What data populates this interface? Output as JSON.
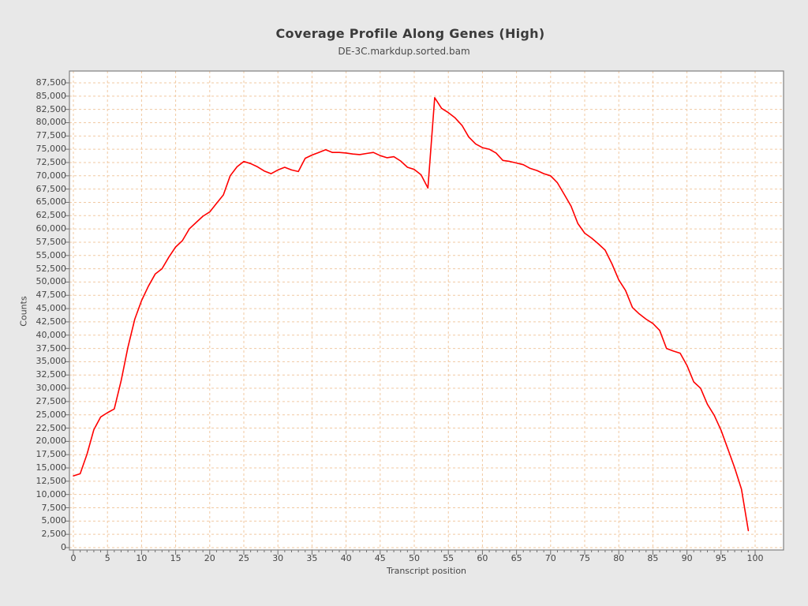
{
  "page": {
    "background": "#e8e8e8"
  },
  "chart": {
    "title": "Coverage Profile Along Genes (High)",
    "subtitle": "DE-3C.markdup.sorted.bam",
    "x_axis_label": "Transcript position",
    "y_axis_label": "Counts"
  },
  "chart_data": {
    "type": "line",
    "title": "Coverage Profile Along Genes (High)",
    "subtitle": "DE-3C.markdup.sorted.bam",
    "xlabel": "Transcript position",
    "ylabel": "Counts",
    "series_name": "DE-3C.markdup.sorted.bam",
    "legend": "none",
    "grid": true,
    "line_color": "#ff0000",
    "grid_color": "#f1c9a2",
    "axis_color": "#808080",
    "tick_color": "#6e6e6e",
    "plot_background": "#ffffff",
    "xlim": [
      -0.6,
      104.2
    ],
    "ylim": [
      0,
      89700
    ],
    "x_tick_values": [
      0,
      5,
      10,
      15,
      20,
      25,
      30,
      35,
      40,
      45,
      50,
      55,
      60,
      65,
      70,
      75,
      80,
      85,
      90,
      95,
      100
    ],
    "y_tick_values": [
      0,
      2500,
      5000,
      7500,
      10000,
      12500,
      15000,
      17500,
      20000,
      22500,
      25000,
      27500,
      30000,
      32500,
      35000,
      37500,
      40000,
      42500,
      45000,
      47500,
      50000,
      52500,
      55000,
      57500,
      60000,
      62500,
      65000,
      67500,
      70000,
      72500,
      75000,
      77500,
      80000,
      82500,
      85000,
      87500
    ],
    "x_start": 0,
    "x_step": 1,
    "values": [
      13500,
      13900,
      17600,
      22200,
      24600,
      25400,
      26100,
      31400,
      37700,
      43000,
      46500,
      49200,
      51500,
      52500,
      54700,
      56600,
      57800,
      60000,
      61200,
      62400,
      63200,
      64800,
      66400,
      70000,
      71700,
      72700,
      72300,
      71700,
      70900,
      70400,
      71100,
      71600,
      71100,
      70800,
      73300,
      73900,
      74400,
      74900,
      74400,
      74400,
      74300,
      74100,
      74000,
      74200,
      74400,
      73800,
      73400,
      73600,
      72800,
      71600,
      71200,
      70200,
      67700,
      84700,
      82700,
      81900,
      80900,
      79500,
      77300,
      76000,
      75300,
      75000,
      74300,
      72900,
      72700,
      72400,
      72100,
      71400,
      71000,
      70400,
      70000,
      68700,
      66500,
      64300,
      61000,
      59200,
      58300,
      57200,
      56000,
      53400,
      50400,
      48400,
      45200,
      44000,
      43000,
      42200,
      40900,
      37500,
      37000,
      36600,
      34300,
      31200,
      30000,
      27000,
      24900,
      22100,
      18600,
      15000,
      11000,
      3200
    ]
  }
}
